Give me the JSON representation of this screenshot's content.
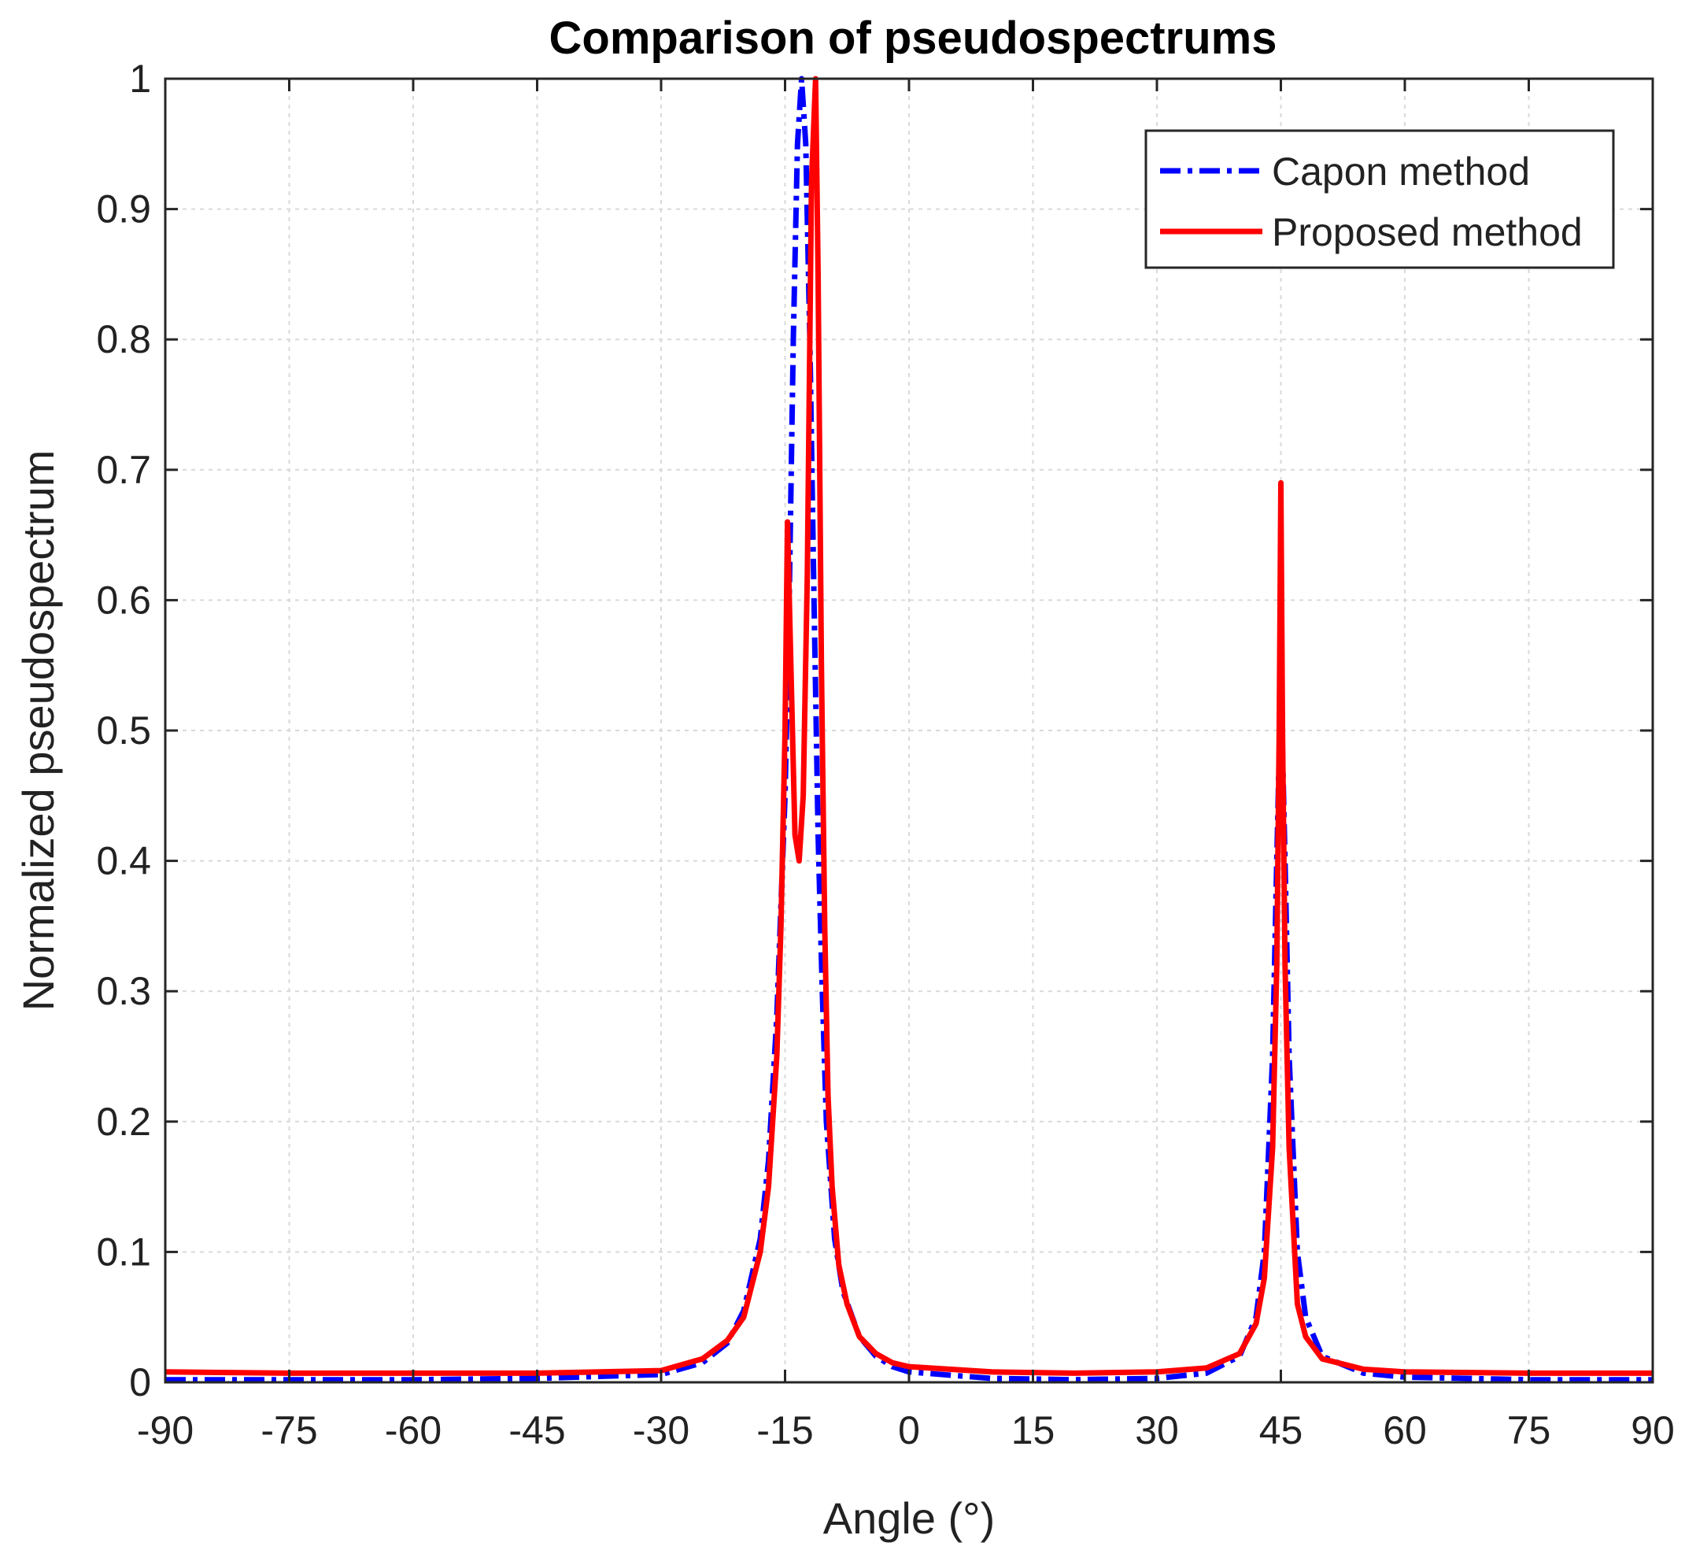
{
  "chart_data": {
    "type": "line",
    "title": "Comparison of pseudospectrums",
    "xlabel": "Angle (°)",
    "ylabel": "Normalized pseudospectrum",
    "xlim": [
      -90,
      90
    ],
    "ylim": [
      0,
      1
    ],
    "xticks": [
      -90,
      -75,
      -60,
      -45,
      -30,
      -15,
      0,
      15,
      30,
      45,
      60,
      75,
      90
    ],
    "yticks": [
      0,
      0.1,
      0.2,
      0.3,
      0.4,
      0.5,
      0.6,
      0.7,
      0.8,
      0.9,
      1
    ],
    "xtick_labels": [
      "-90",
      "-75",
      "-60",
      "-45",
      "-30",
      "-15",
      "0",
      "15",
      "30",
      "45",
      "60",
      "75",
      "90"
    ],
    "ytick_labels": [
      "0",
      "0.1",
      "0.2",
      "0.3",
      "0.4",
      "0.5",
      "0.6",
      "0.7",
      "0.8",
      "0.9",
      "1"
    ],
    "grid": true,
    "legend_position": "top-right",
    "series": [
      {
        "name": "Capon method",
        "color": "#0000ff",
        "style": "dash-dot",
        "x": [
          -90,
          -75,
          -60,
          -45,
          -30,
          -25,
          -22,
          -20,
          -18,
          -17,
          -16,
          -15,
          -14.5,
          -14,
          -13.5,
          -13,
          -12.5,
          -12,
          -11.5,
          -11,
          -10.5,
          -10,
          -9,
          -8,
          -6,
          -4,
          -2,
          0,
          10,
          20,
          30,
          36,
          40,
          42,
          43,
          44,
          44.5,
          45,
          45.5,
          46,
          47,
          48,
          50,
          55,
          60,
          75,
          90
        ],
        "y": [
          0.002,
          0.002,
          0.002,
          0.003,
          0.006,
          0.015,
          0.03,
          0.055,
          0.11,
          0.17,
          0.28,
          0.45,
          0.6,
          0.8,
          0.95,
          1.0,
          0.95,
          0.8,
          0.6,
          0.42,
          0.3,
          0.2,
          0.11,
          0.07,
          0.035,
          0.02,
          0.012,
          0.008,
          0.003,
          0.002,
          0.003,
          0.007,
          0.02,
          0.05,
          0.1,
          0.25,
          0.4,
          0.54,
          0.4,
          0.25,
          0.1,
          0.05,
          0.02,
          0.007,
          0.004,
          0.002,
          0.002
        ]
      },
      {
        "name": "Proposed method",
        "color": "#ff0000",
        "style": "solid",
        "x": [
          -90,
          -75,
          -60,
          -45,
          -30,
          -25,
          -22,
          -20,
          -18,
          -17,
          -16,
          -15.5,
          -15,
          -14.7,
          -14.3,
          -13.8,
          -13.3,
          -12.8,
          -12.3,
          -11.8,
          -11.3,
          -11.0,
          -10.6,
          -10.2,
          -9.8,
          -9.3,
          -8.5,
          -7.5,
          -6,
          -4,
          -2,
          0,
          10,
          20,
          30,
          36,
          40,
          42,
          43,
          44,
          44.5,
          44.8,
          45,
          45.2,
          45.5,
          46,
          47,
          48,
          50,
          55,
          60,
          75,
          90
        ],
        "y": [
          0.008,
          0.007,
          0.007,
          0.007,
          0.009,
          0.018,
          0.032,
          0.05,
          0.1,
          0.15,
          0.25,
          0.35,
          0.5,
          0.66,
          0.55,
          0.42,
          0.4,
          0.45,
          0.62,
          0.92,
          1.0,
          0.85,
          0.55,
          0.35,
          0.22,
          0.15,
          0.09,
          0.06,
          0.035,
          0.022,
          0.015,
          0.012,
          0.008,
          0.007,
          0.008,
          0.011,
          0.022,
          0.045,
          0.08,
          0.18,
          0.32,
          0.5,
          0.69,
          0.5,
          0.32,
          0.18,
          0.06,
          0.035,
          0.018,
          0.01,
          0.008,
          0.007,
          0.007
        ]
      }
    ]
  }
}
